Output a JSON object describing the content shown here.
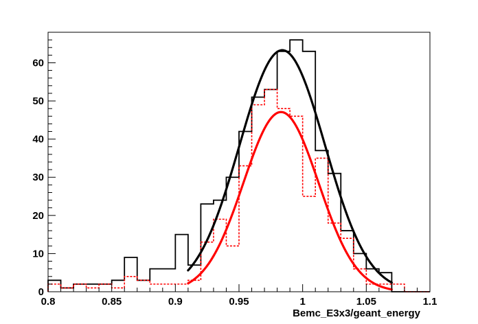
{
  "chart_data": {
    "type": "histogram",
    "xlabel": "Bemc_E3x3/geant_energy",
    "ylabel": "",
    "title": "",
    "xlim": [
      0.8,
      1.1
    ],
    "ylim": [
      0,
      68
    ],
    "x_ticks": [
      0.8,
      0.85,
      0.9,
      0.95,
      1.0,
      1.05,
      1.1
    ],
    "x_tick_labels": [
      "0.8",
      "0.85",
      "0.9",
      "0.95",
      "1",
      "1.05",
      "1.1"
    ],
    "y_ticks": [
      0,
      10,
      20,
      30,
      40,
      50,
      60
    ],
    "y_tick_labels": [
      "0",
      "10",
      "20",
      "30",
      "40",
      "50",
      "60"
    ],
    "grid": false,
    "legend": "none",
    "bin_width": 0.01,
    "bins_start": [
      0.8,
      0.81,
      0.82,
      0.83,
      0.84,
      0.85,
      0.86,
      0.87,
      0.88,
      0.89,
      0.9,
      0.91,
      0.92,
      0.93,
      0.94,
      0.95,
      0.96,
      0.97,
      0.98,
      0.99,
      1.0,
      1.01,
      1.02,
      1.03,
      1.04,
      1.05,
      1.06,
      1.07,
      1.08,
      1.09
    ],
    "series": [
      {
        "style": "solid",
        "color": "#000000",
        "values": [
          3,
          1,
          2,
          2,
          2,
          3,
          9,
          3,
          6,
          6,
          15,
          7,
          23,
          24,
          30,
          42,
          51,
          53,
          63,
          66,
          63,
          37,
          31,
          16,
          10,
          6,
          5,
          0,
          0,
          0
        ]
      },
      {
        "style": "dashed",
        "color": "#ff0000",
        "values": [
          2,
          1,
          2,
          1,
          2,
          1,
          4,
          3,
          2,
          2,
          2,
          3,
          13,
          19,
          12,
          33,
          49,
          53,
          48,
          46,
          25,
          35,
          18,
          14,
          6,
          2,
          2,
          2,
          0,
          0
        ]
      }
    ],
    "fits": [
      {
        "color": "#000000",
        "type": "gaussian",
        "amplitude": 63.3,
        "mean": 0.984,
        "sigma": 0.0336,
        "x_range": [
          0.91,
          1.07
        ]
      },
      {
        "color": "#ff0000",
        "type": "gaussian",
        "amplitude": 47.1,
        "mean": 0.983,
        "sigma": 0.0295,
        "x_range": [
          0.91,
          1.07
        ]
      }
    ]
  }
}
